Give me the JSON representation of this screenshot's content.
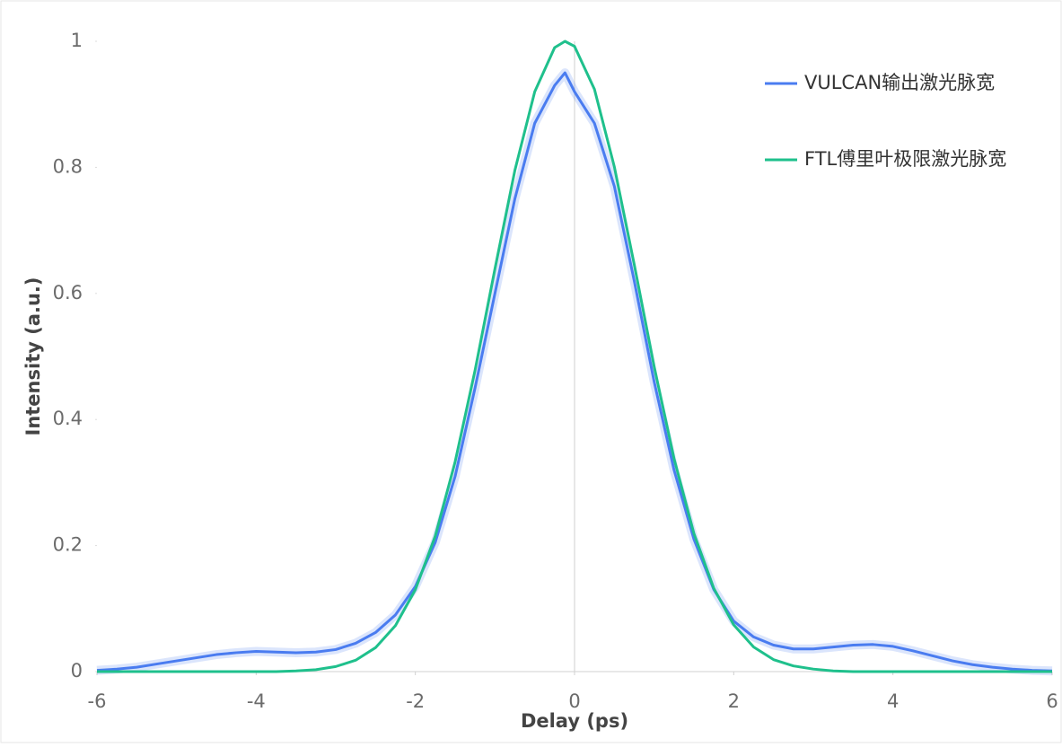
{
  "chart_data": {
    "type": "line",
    "xlabel": "Delay (ps)",
    "ylabel": "Intensity (a.u.)",
    "x": [
      -6,
      -5.75,
      -5.5,
      -5.25,
      -5,
      -4.75,
      -4.5,
      -4.25,
      -4,
      -3.75,
      -3.5,
      -3.25,
      -3,
      -2.75,
      -2.5,
      -2.25,
      -2,
      -1.75,
      -1.5,
      -1.25,
      -1,
      -0.75,
      -0.5,
      -0.25,
      -0.12,
      0,
      0.25,
      0.5,
      0.75,
      1,
      1.25,
      1.5,
      1.75,
      2,
      2.25,
      2.5,
      2.75,
      3,
      3.25,
      3.5,
      3.75,
      4,
      4.25,
      4.5,
      4.75,
      5,
      5.25,
      5.5,
      5.75,
      6
    ],
    "series": [
      {
        "name": "VULCAN输出激光脉宽",
        "color": "#4a7cf0",
        "values": [
          0.002,
          0.004,
          0.007,
          0.012,
          0.017,
          0.022,
          0.027,
          0.03,
          0.032,
          0.031,
          0.03,
          0.031,
          0.035,
          0.045,
          0.062,
          0.09,
          0.135,
          0.205,
          0.31,
          0.45,
          0.6,
          0.75,
          0.87,
          0.93,
          0.95,
          0.92,
          0.87,
          0.77,
          0.62,
          0.46,
          0.32,
          0.21,
          0.13,
          0.08,
          0.055,
          0.042,
          0.036,
          0.036,
          0.039,
          0.042,
          0.043,
          0.04,
          0.033,
          0.025,
          0.017,
          0.011,
          0.007,
          0.004,
          0.002,
          0.001
        ]
      },
      {
        "name": "FTL傅里叶极限激光脉宽",
        "color": "#1fc08c",
        "values": [
          0,
          0,
          0,
          0,
          0,
          0,
          0,
          0,
          0,
          0,
          0.001,
          0.003,
          0.008,
          0.018,
          0.038,
          0.073,
          0.13,
          0.215,
          0.333,
          0.478,
          0.639,
          0.795,
          0.92,
          0.99,
          1,
          0.992,
          0.924,
          0.801,
          0.646,
          0.484,
          0.338,
          0.219,
          0.132,
          0.074,
          0.039,
          0.019,
          0.009,
          0.004,
          0.001,
          0,
          0,
          0,
          0,
          0,
          0,
          0,
          0,
          0,
          0,
          0
        ]
      }
    ],
    "xlim": [
      -6,
      6
    ],
    "xticks": [
      -6,
      -4,
      -2,
      0,
      2,
      4,
      6
    ],
    "ylim": [
      0,
      1
    ],
    "yticks": [
      0,
      0.2,
      0.4,
      0.6,
      0.8,
      1
    ],
    "legend": "upper right"
  }
}
